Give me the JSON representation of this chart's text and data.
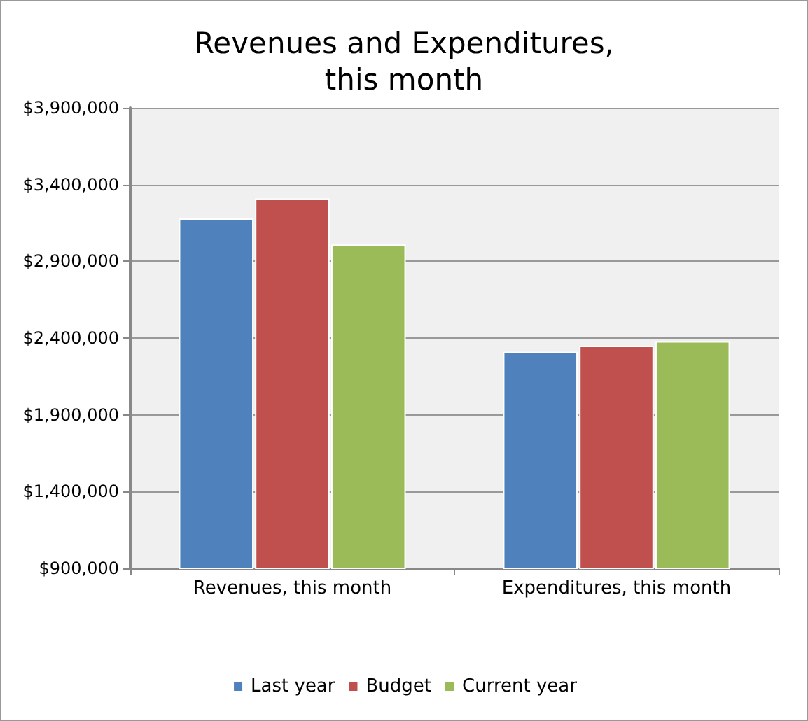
{
  "chart_data": {
    "type": "bar",
    "title": "Revenues and Expenditures,\nthis month",
    "categories": [
      "Revenues, this month",
      "Expenditures, this month"
    ],
    "series": [
      {
        "name": "Last year",
        "color": "#4f81bd",
        "values": [
          3180000,
          2310000
        ]
      },
      {
        "name": "Budget",
        "color": "#c0504d",
        "values": [
          3310000,
          2350000
        ]
      },
      {
        "name": "Current year",
        "color": "#9bbb59",
        "values": [
          3010000,
          2380000
        ]
      }
    ],
    "ylim": [
      900000,
      3900000
    ],
    "yticks": [
      {
        "value": 900000,
        "label": "$900,000"
      },
      {
        "value": 1400000,
        "label": "$1,400,000"
      },
      {
        "value": 1900000,
        "label": "$1,900,000"
      },
      {
        "value": 2400000,
        "label": "$2,400,000"
      },
      {
        "value": 2900000,
        "label": "$2,900,000"
      },
      {
        "value": 3400000,
        "label": "$3,400,000"
      },
      {
        "value": 3900000,
        "label": "$3,900,000"
      }
    ],
    "grid": "y",
    "legend": "bottom"
  }
}
